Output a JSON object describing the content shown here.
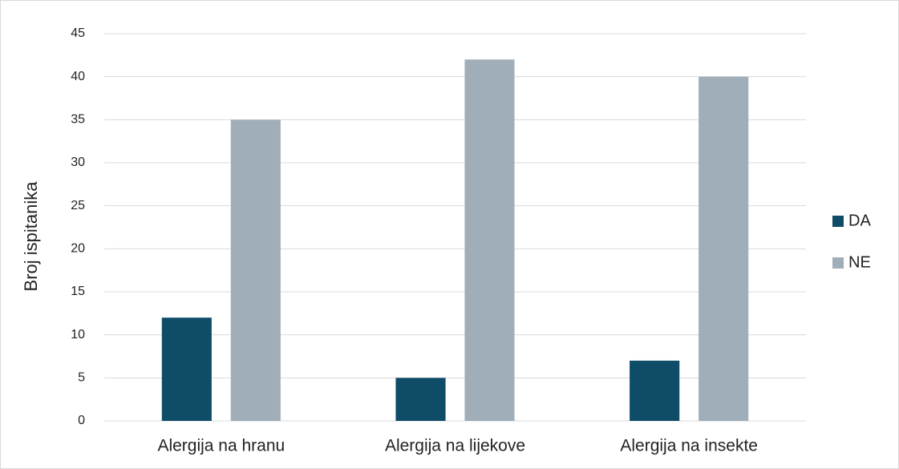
{
  "chart_data": {
    "type": "bar",
    "y_label": "Broj ispitanika",
    "categories": [
      "Alergija na hranu",
      "Alergija na lijekove",
      "Alergija na insekte"
    ],
    "series": [
      {
        "name": "DA",
        "color": "#0f4c68",
        "values": [
          12,
          5,
          7
        ]
      },
      {
        "name": "NE",
        "color": "#a0aeba",
        "values": [
          35,
          42,
          40
        ]
      }
    ],
    "ylim": [
      0,
      45
    ],
    "yticks": [
      0,
      5,
      10,
      15,
      20,
      25,
      30,
      35,
      40,
      45
    ],
    "grid": true,
    "legend": "right"
  }
}
